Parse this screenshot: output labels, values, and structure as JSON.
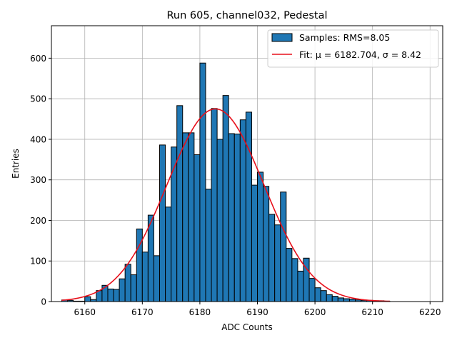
{
  "chart_data": {
    "type": "bar",
    "title": "Run 605, channel032, Pedestal",
    "xlabel": "ADC Counts",
    "ylabel": "Entries",
    "xlim": [
      6154.2,
      6222.2
    ],
    "ylim": [
      0,
      680
    ],
    "xticks": [
      6160,
      6170,
      6180,
      6190,
      6200,
      6210,
      6220
    ],
    "yticks": [
      0,
      100,
      200,
      300,
      400,
      500,
      600
    ],
    "grid": true,
    "legend_position": "top-right",
    "bin_width": 1,
    "bin_start": 6156,
    "values": [
      4,
      3,
      1,
      1,
      12,
      5,
      27,
      40,
      31,
      30,
      56,
      92,
      66,
      179,
      122,
      213,
      113,
      386,
      233,
      381,
      483,
      416,
      416,
      362,
      588,
      277,
      476,
      400,
      508,
      414,
      413,
      448,
      467,
      287,
      319,
      284,
      215,
      189,
      270,
      131,
      106,
      75,
      107,
      57,
      34,
      27,
      17,
      13,
      9,
      7,
      6,
      4,
      3,
      3,
      2,
      2,
      1,
      0,
      0,
      0,
      0,
      0,
      0,
      0
    ],
    "series": [
      {
        "name": "Samples: RMS=8.05",
        "kind": "histogram",
        "color": "#1f77b4",
        "edgecolor": "#000000"
      },
      {
        "name": "Fit: μ = 6182.704, σ = 8.42",
        "kind": "gaussian",
        "color": "#e8101b",
        "mu": 6182.704,
        "sigma": 8.42,
        "amplitude": 475,
        "x_range": [
          6156,
          6213
        ]
      }
    ]
  }
}
